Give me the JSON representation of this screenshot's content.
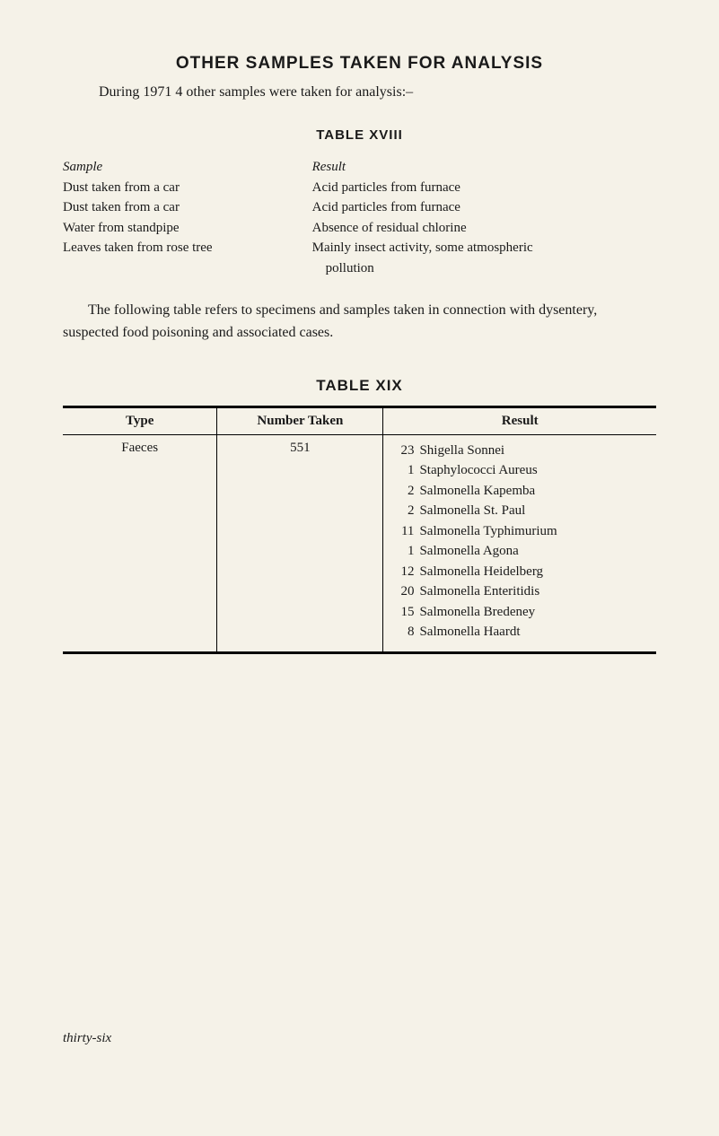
{
  "heading": "OTHER SAMPLES TAKEN FOR ANALYSIS",
  "intro": "During 1971 4 other samples were taken for analysis:–",
  "table18": {
    "title": "TABLE XVIII",
    "header_sample": "Sample",
    "header_result": "Result",
    "rows": [
      {
        "sample": "Dust taken from a car",
        "result": "Acid particles from furnace"
      },
      {
        "sample": "Dust taken from a car",
        "result": "Acid particles from furnace"
      },
      {
        "sample": "Water from standpipe",
        "result": "Absence of residual chlorine"
      },
      {
        "sample": "Leaves taken from rose tree",
        "result": "Mainly insect activity, some atmospheric pollution"
      }
    ],
    "last_row_indent": "pollution"
  },
  "body_para": "The following table refers to specimens and samples taken in con­nection with dysentery, suspected food poisoning and associated cases.",
  "table19": {
    "title": "TABLE XIX",
    "columns": [
      "Type",
      "Number Taken",
      "Result"
    ],
    "row_type": "Faeces",
    "row_number": "551",
    "results": [
      {
        "count": "23",
        "name": "Shigella Sonnei"
      },
      {
        "count": "1",
        "name": "Staphylococci Aureus"
      },
      {
        "count": "2",
        "name": "Salmonella Kapemba"
      },
      {
        "count": "2",
        "name": "Salmonella St. Paul"
      },
      {
        "count": "11",
        "name": "Salmonella Typhimurium"
      },
      {
        "count": "1",
        "name": "Salmonella Agona"
      },
      {
        "count": "12",
        "name": "Salmonella Heidelberg"
      },
      {
        "count": "20",
        "name": "Salmonella Enteritidis"
      },
      {
        "count": "15",
        "name": "Salmonella Bredeney"
      },
      {
        "count": "8",
        "name": "Salmonella Haardt"
      }
    ]
  },
  "footer": "thirty-six"
}
